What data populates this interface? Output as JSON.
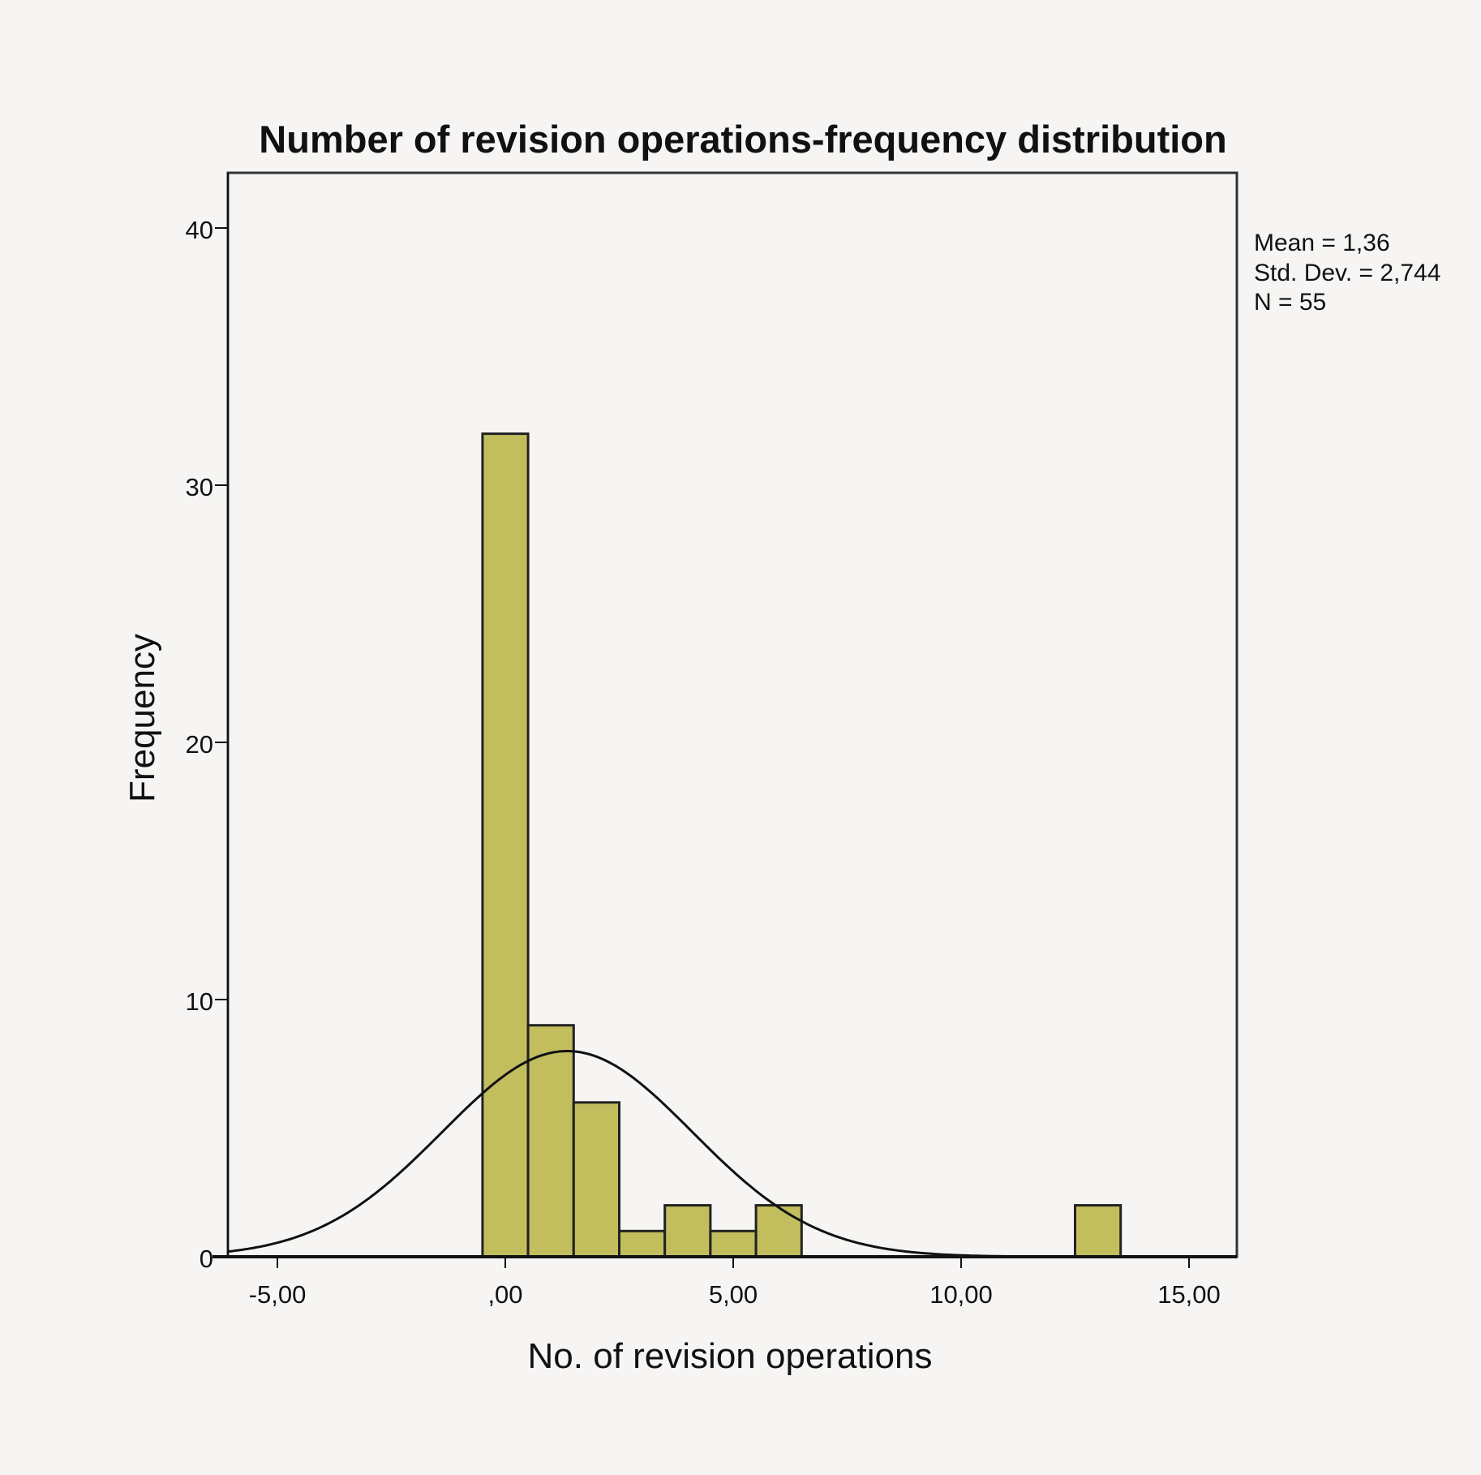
{
  "chart_data": {
    "type": "bar",
    "title": "Number of revision operations-frequency distribution",
    "xlabel": "No. of revision operations",
    "ylabel": "Frequency",
    "bin_centers": [
      0,
      1,
      2,
      3,
      4,
      5,
      6,
      13
    ],
    "values": [
      32,
      9,
      6,
      1,
      2,
      1,
      2,
      2
    ],
    "bin_width": 1,
    "xlim": [
      -6.1,
      16.1
    ],
    "ylim": [
      0,
      42
    ],
    "x_ticks": [
      -5,
      0,
      5,
      10,
      15
    ],
    "x_tick_labels": [
      "-5,00",
      ",00",
      "5,00",
      "10,00",
      "15,00"
    ],
    "y_ticks": [
      0,
      10,
      20,
      30,
      40
    ],
    "y_tick_labels": [
      "0",
      "10",
      "20",
      "30",
      "40"
    ],
    "normal_curve": {
      "mean": 1.36,
      "sd": 2.744,
      "n": 55
    },
    "stats": [
      "Mean = 1,36",
      "Std. Dev. = 2,744",
      "N = 55"
    ],
    "bar_color": "#c2be5e",
    "grid": false
  }
}
